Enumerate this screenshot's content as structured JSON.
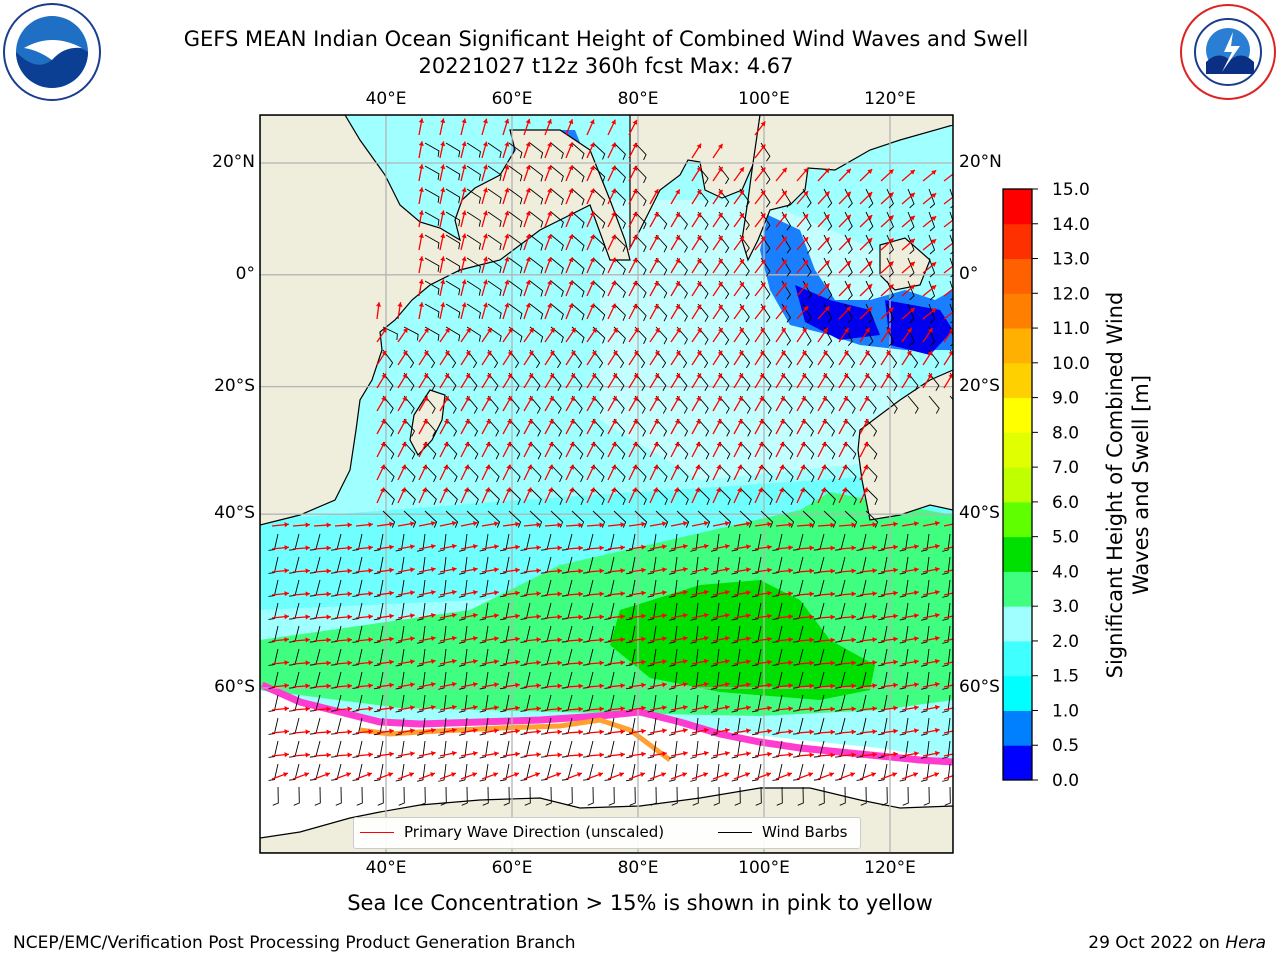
{
  "header": {
    "title_line1": "GEFS MEAN Indian Ocean Significant Height of Combined Wind Waves and Swell",
    "title_line2": "20221027 t12z 360h fcst   Max: 4.67"
  },
  "logos": {
    "left": {
      "icon": "noaa-logo-icon",
      "text": "NOAA"
    },
    "right": {
      "icon": "nws-logo-icon",
      "text": "NATIONAL WEATHER SERVICE"
    }
  },
  "map": {
    "lon_ticks": [
      "40°E",
      "60°E",
      "80°E",
      "100°E",
      "120°E"
    ],
    "lat_ticks_left": [
      "20°N",
      "0°",
      "20°S",
      "40°S",
      "60°S"
    ],
    "lat_ticks_right": [
      "20°N",
      "0°",
      "20°S",
      "40°S",
      "60°S"
    ],
    "lon_range": [
      20,
      130
    ],
    "lat_range": [
      -72,
      28
    ],
    "colors": {
      "land": "#efeedc",
      "ice": "#ffffff",
      "grid": "#b0b0b0"
    }
  },
  "legend": {
    "wave_direction": "Primary Wave Direction (unscaled)",
    "wind_barbs": "Wind Barbs",
    "wave_color": "#ff0000",
    "barb_color": "#000000"
  },
  "colorbar": {
    "label": "Significant Height of Combined Wind Waves and Swell [m]",
    "ticks": [
      "0.0",
      "0.5",
      "1.0",
      "1.5",
      "2.0",
      "3.0",
      "4.0",
      "5.0",
      "6.0",
      "7.0",
      "8.0",
      "9.0",
      "10.0",
      "11.0",
      "12.0",
      "13.0",
      "14.0",
      "15.0"
    ],
    "colors": [
      "#0000ff",
      "#0080ff",
      "#00ffff",
      "#40ffff",
      "#a0ffff",
      "#40ff80",
      "#00e000",
      "#60ff00",
      "#c0ff00",
      "#e0ff00",
      "#ffff00",
      "#ffd000",
      "#ffb000",
      "#ff8000",
      "#ff6000",
      "#ff3000",
      "#ff0000"
    ]
  },
  "notes": {
    "sea_ice": "Sea Ice Concentration > 15% is shown in pink to yellow"
  },
  "footer": {
    "left": "NCEP/EMC/Verification Post Processing Product Generation Branch",
    "right_prefix": "29 Oct 2022 on ",
    "right_host": "Hera"
  }
}
